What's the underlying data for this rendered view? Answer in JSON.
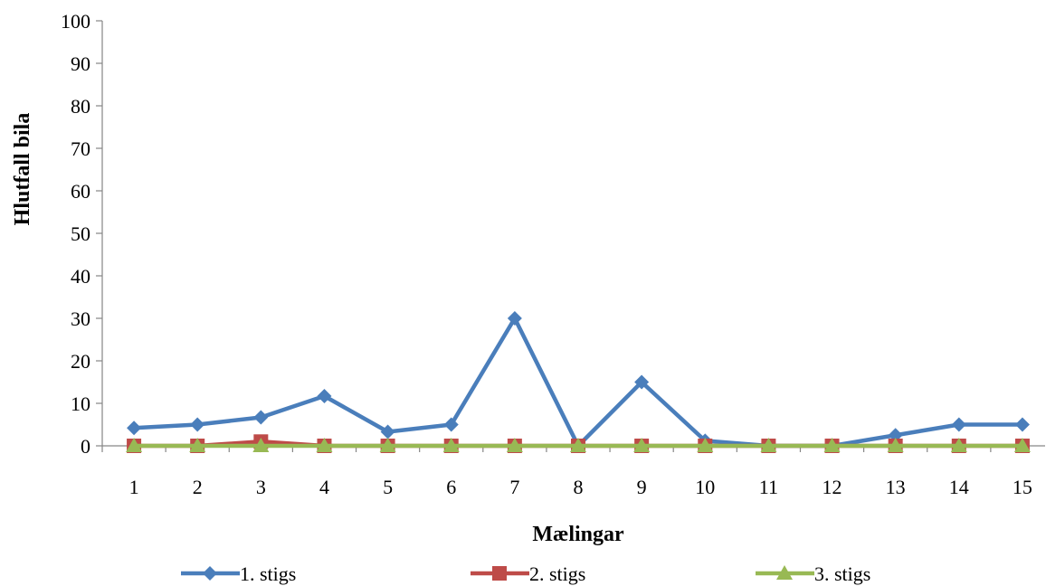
{
  "chart_data": {
    "type": "line",
    "title": "",
    "xlabel": "Mælingar",
    "ylabel": "Hlutfall bila",
    "categories": [
      "1",
      "2",
      "3",
      "4",
      "5",
      "6",
      "7",
      "8",
      "9",
      "10",
      "11",
      "12",
      "13",
      "14",
      "15"
    ],
    "ylim": [
      0,
      100
    ],
    "yticks": [
      "0",
      "10",
      "20",
      "30",
      "40",
      "50",
      "60",
      "70",
      "80",
      "90",
      "100"
    ],
    "grid": false,
    "legend_position": "bottom",
    "series": [
      {
        "name": "1. stigs",
        "marker": "diamond",
        "color": "#4a7ebb",
        "values": [
          4.2,
          5,
          6.7,
          11.7,
          3.3,
          5,
          30,
          0,
          15,
          1.2,
          0,
          0,
          2.5,
          5,
          5
        ]
      },
      {
        "name": "2. stigs",
        "marker": "square",
        "color": "#be4b48",
        "values": [
          0,
          0,
          1,
          0,
          0,
          0,
          0,
          0,
          0,
          0,
          0,
          0,
          0,
          0,
          0
        ]
      },
      {
        "name": "3. stigs",
        "marker": "triangle",
        "color": "#98b954",
        "values": [
          0,
          0,
          0,
          0,
          0,
          0,
          0,
          0,
          0,
          0,
          0,
          0,
          0,
          0,
          0
        ]
      }
    ]
  }
}
